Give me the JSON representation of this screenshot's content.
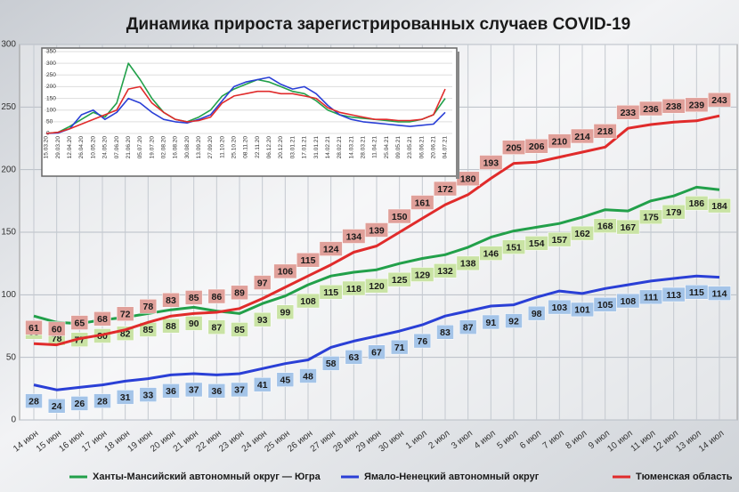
{
  "chart_data": [
    {
      "type": "line",
      "title": "Динамика прироста зарегистрированных случаев COVID-19",
      "categories": [
        "14 июн",
        "15 июн",
        "16 июн",
        "17 июн",
        "18 июн",
        "19 июн",
        "20 июн",
        "21 июн",
        "22 июн",
        "23 июн",
        "24 июн",
        "25 июн",
        "26 июн",
        "27 июн",
        "28 июн",
        "29 июн",
        "30 июн",
        "1 июл",
        "2 июл",
        "3 июл",
        "4 июл",
        "5 июл",
        "6 июл",
        "7 июл",
        "8 июл",
        "9 июл",
        "10 июл",
        "11 июл",
        "12 июл",
        "13 июл",
        "14 июл"
      ],
      "ylim": [
        0,
        300
      ],
      "yticks": [
        0,
        50,
        100,
        150,
        200,
        250,
        300
      ],
      "grid": true,
      "legend": "bottom",
      "series": [
        {
          "name": "Ханты-Мансийский автономный округ — Югра",
          "color": "#22a04a",
          "label_color": "#c9e3a4",
          "values": [
            83,
            78,
            77,
            80,
            82,
            85,
            88,
            90,
            87,
            85,
            93,
            99,
            108,
            115,
            118,
            120,
            125,
            129,
            132,
            138,
            146,
            151,
            154,
            157,
            162,
            168,
            167,
            175,
            179,
            186,
            184
          ]
        },
        {
          "name": "Ямало-Ненецкий автономный округ",
          "color": "#2a3fd6",
          "label_color": "#a4c4e8",
          "values": [
            28,
            24,
            26,
            28,
            31,
            33,
            36,
            37,
            36,
            37,
            41,
            45,
            48,
            58,
            63,
            67,
            71,
            76,
            83,
            87,
            91,
            92,
            98,
            103,
            101,
            105,
            108,
            111,
            113,
            115,
            114
          ]
        },
        {
          "name": "Тюменская область",
          "color": "#e02b2b",
          "label_color": "#e0a09a",
          "values": [
            61,
            60,
            65,
            68,
            72,
            78,
            83,
            85,
            86,
            89,
            97,
            106,
            115,
            124,
            134,
            139,
            150,
            161,
            172,
            180,
            193,
            205,
            206,
            210,
            214,
            218,
            233,
            236,
            238,
            239,
            243
          ]
        }
      ]
    },
    {
      "type": "line",
      "categories": [
        "15.03.20",
        "29.03.20",
        "12.04.20",
        "26.04.20",
        "10.05.20",
        "24.05.20",
        "07.06.20",
        "21.06.20",
        "05.07.20",
        "19.07.20",
        "02.08.20",
        "16.08.20",
        "30.08.20",
        "13.09.20",
        "27.09.20",
        "11.10.20",
        "25.10.20",
        "08.11.20",
        "22.11.20",
        "06.12.20",
        "20.12.20",
        "03.01.21",
        "17.01.21",
        "31.01.21",
        "14.02.21",
        "28.02.21",
        "14.03.21",
        "28.03.21",
        "11.04.21",
        "25.04.21",
        "09.05.21",
        "23.05.21",
        "06.06.21",
        "20.06.21",
        "04.07.21"
      ],
      "ylim": [
        0,
        350
      ],
      "yticks": [
        0,
        50,
        100,
        150,
        200,
        250,
        300,
        350
      ],
      "grid": true,
      "series": [
        {
          "color": "#22a04a",
          "values": [
            0,
            5,
            30,
            60,
            90,
            70,
            130,
            300,
            230,
            150,
            90,
            60,
            50,
            70,
            100,
            160,
            190,
            210,
            230,
            220,
            200,
            180,
            170,
            140,
            100,
            80,
            70,
            65,
            60,
            55,
            50,
            50,
            60,
            80,
            150
          ]
        },
        {
          "color": "#2a3fd6",
          "values": [
            0,
            2,
            20,
            80,
            100,
            60,
            90,
            150,
            130,
            90,
            60,
            50,
            45,
            60,
            80,
            140,
            200,
            220,
            230,
            240,
            210,
            190,
            200,
            170,
            120,
            80,
            60,
            50,
            45,
            40,
            35,
            30,
            35,
            40,
            90
          ]
        },
        {
          "color": "#e02b2b",
          "values": [
            0,
            5,
            20,
            40,
            60,
            80,
            100,
            190,
            200,
            130,
            90,
            60,
            50,
            55,
            70,
            130,
            160,
            170,
            180,
            180,
            170,
            170,
            160,
            150,
            110,
            90,
            80,
            70,
            60,
            60,
            55,
            55,
            60,
            80,
            190
          ]
        }
      ]
    }
  ]
}
